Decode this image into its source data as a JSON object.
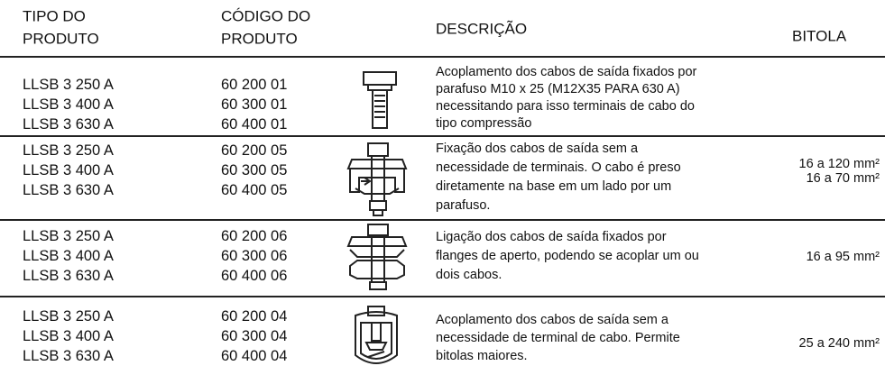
{
  "table": {
    "headers": [
      [
        "TIPO DO",
        "PRODUTO"
      ],
      [
        "CÓDIGO DO",
        "PRODUTO"
      ],
      [
        "DESCRIÇÃO"
      ],
      [
        "BITOLA"
      ]
    ],
    "rows": [
      {
        "types": [
          "LLSB 3 250 A",
          "LLSB 3 400 A",
          "LLSB 3 630 A"
        ],
        "codes": [
          "60 200 01",
          "60 300 01",
          "60 400 01"
        ],
        "description": [
          "Acoplamento dos cabos de saída fixados por",
          "parafuso M10 x 25 (M12X35 PARA 630 A)",
          "necessitando para isso terminais de cabo do",
          "tipo compressão"
        ],
        "gauge": "16 a 120 mm²"
      },
      {
        "types": [
          "LLSB 3 250 A",
          "LLSB 3 400 A",
          "LLSB 3 630 A"
        ],
        "codes": [
          "60 200 05",
          "60 300 05",
          "60 400 05"
        ],
        "description": [
          "Fixação dos cabos de saída sem a",
          "necessidade de terminais. O cabo é preso",
          "diretamente na base em um lado por um",
          "parafuso."
        ],
        "gauge": "16 a 70 mm²"
      },
      {
        "types": [
          "LLSB 3 250 A",
          "LLSB 3 400 A",
          "LLSB 3 630 A"
        ],
        "codes": [
          "60 200 06",
          "60 300 06",
          "60 400 06"
        ],
        "description": [
          "Ligação dos cabos de saída fixados por",
          "flanges de aperto, podendo se acoplar um ou",
          "dois cabos."
        ],
        "gauge": "16 a 95 mm²"
      },
      {
        "types": [
          "LLSB 3 250 A",
          "LLSB 3 400 A",
          "LLSB 3 630 A"
        ],
        "codes": [
          "60 200 04",
          "60 300 04",
          "60 400 04"
        ],
        "description": [
          "Acoplamento dos cabos de saída sem a",
          "necessidade de terminal de cabo. Permite",
          "bitolas maiores."
        ],
        "gauge": "25 a 240 mm²"
      }
    ]
  }
}
